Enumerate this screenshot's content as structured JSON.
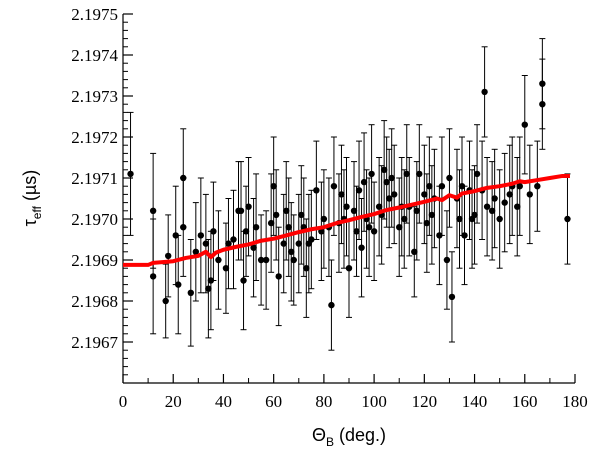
{
  "chart_data": {
    "type": "scatter",
    "xlabel": "Θ",
    "xlabel_sub": "B",
    "xlabel_unit": " (deg.)",
    "ylabel": "τ",
    "ylabel_sub": "eff",
    "ylabel_unit": " (µs)",
    "xlim": [
      0,
      180
    ],
    "ylim": [
      2.1966,
      2.1975
    ],
    "x_ticks": [
      "0",
      "20",
      "40",
      "60",
      "80",
      "100",
      "120",
      "140",
      "160",
      "180"
    ],
    "y_ticks": [
      "2.1967",
      "2.1968",
      "2.1969",
      "2.1970",
      "2.1971",
      "2.1972",
      "2.1973",
      "2.1974",
      "2.1975"
    ],
    "grid": false,
    "colors": {
      "points": "#000000",
      "fit": "#ff0000"
    },
    "series": [
      {
        "style": "points-with-error-bars",
        "x": [
          3,
          12,
          12,
          17,
          18,
          21,
          22,
          24,
          24,
          27,
          29,
          31,
          33,
          34,
          35,
          36,
          38,
          41,
          42,
          44,
          46,
          47,
          48,
          49,
          50,
          52,
          53,
          55,
          57,
          59,
          60,
          61,
          62,
          64,
          65,
          66,
          67,
          68,
          70,
          71,
          72,
          73,
          74,
          75,
          77,
          79,
          80,
          82,
          83,
          84,
          86,
          87,
          88,
          89,
          90,
          92,
          93,
          94,
          95,
          96,
          97,
          98,
          99,
          100,
          102,
          103,
          104,
          105,
          106,
          107,
          108,
          110,
          111,
          112,
          113,
          114,
          116,
          117,
          118,
          120,
          121,
          122,
          123,
          124,
          126,
          127,
          129,
          130,
          131,
          133,
          134,
          135,
          136,
          138,
          139,
          140,
          141,
          143,
          144,
          145,
          147,
          148,
          150,
          152,
          154,
          155,
          157,
          158,
          160,
          162,
          165,
          167,
          167,
          177
        ],
        "y": [
          2.19711,
          2.19686,
          2.19702,
          2.1968,
          2.19691,
          2.19696,
          2.19684,
          2.1971,
          2.19698,
          2.19682,
          2.19692,
          2.19696,
          2.19694,
          2.19683,
          2.19685,
          2.19697,
          2.1969,
          2.19688,
          2.19694,
          2.19695,
          2.19702,
          2.19702,
          2.19685,
          2.19697,
          2.19703,
          2.19693,
          2.19698,
          2.1969,
          2.1969,
          2.19699,
          2.19708,
          2.19701,
          2.19686,
          2.19694,
          2.19702,
          2.19698,
          2.19692,
          2.1969,
          2.19694,
          2.19701,
          2.19698,
          2.19688,
          2.19694,
          2.19695,
          2.19707,
          2.19697,
          2.197,
          2.19698,
          2.19679,
          2.19708,
          2.19699,
          2.19706,
          2.197,
          2.19703,
          2.19688,
          2.19702,
          2.19697,
          2.19707,
          2.19693,
          2.19709,
          2.197,
          2.19698,
          2.19711,
          2.19697,
          2.19703,
          2.19701,
          2.19712,
          2.19709,
          2.19705,
          2.1971,
          2.19706,
          2.19698,
          2.19703,
          2.197,
          2.19711,
          2.19703,
          2.19692,
          2.19702,
          2.19711,
          2.19706,
          2.19699,
          2.19708,
          2.19701,
          2.19705,
          2.19696,
          2.19708,
          2.1969,
          2.1971,
          2.19681,
          2.19705,
          2.197,
          2.19708,
          2.19696,
          2.19707,
          2.197,
          2.19701,
          2.19711,
          2.19707,
          2.19731,
          2.19703,
          2.19702,
          2.19705,
          2.197,
          2.19704,
          2.19706,
          2.19708,
          2.19703,
          2.19708,
          2.19723,
          2.19706,
          2.19708,
          2.19728,
          2.19733,
          2.197
        ],
        "err": [
          0.00015,
          0.00014,
          0.00014,
          9e-05,
          0.0001,
          0.00012,
          0.00012,
          0.00012,
          0.00012,
          0.00013,
          0.00012,
          0.00014,
          0.00012,
          0.00012,
          0.00012,
          0.00012,
          0.00012,
          0.00011,
          0.00011,
          0.00012,
          0.00012,
          0.00012,
          0.00012,
          0.00011,
          0.00012,
          0.00012,
          0.00013,
          0.00011,
          0.00012,
          0.00012,
          0.00012,
          0.00011,
          0.00012,
          0.00012,
          0.00012,
          0.00012,
          0.00012,
          0.00011,
          0.00012,
          0.00012,
          0.00012,
          0.00012,
          0.00012,
          0.00012,
          0.00012,
          0.00012,
          0.00012,
          0.00012,
          0.00011,
          0.00012,
          0.00012,
          0.00012,
          0.00012,
          0.00012,
          0.00012,
          0.00012,
          0.00011,
          0.00012,
          0.00012,
          0.00012,
          0.00012,
          0.00012,
          0.00012,
          0.00012,
          0.00012,
          0.00012,
          0.00012,
          0.00011,
          0.00012,
          0.00012,
          0.00012,
          0.00012,
          0.00012,
          0.00012,
          0.00012,
          0.00012,
          0.00011,
          0.00012,
          0.00012,
          0.00012,
          0.00012,
          0.00012,
          0.00012,
          0.00012,
          0.00012,
          0.00012,
          0.00012,
          0.00012,
          0.00011,
          0.00012,
          0.00012,
          0.00012,
          0.00012,
          0.00012,
          0.00012,
          0.00012,
          0.00012,
          0.00012,
          0.00011,
          0.00012,
          0.00012,
          0.00012,
          0.00012,
          0.00012,
          0.00012,
          0.00012,
          0.00012,
          0.00012,
          0.00012,
          0.00012,
          0.00011,
          0.00011,
          0.00011,
          0.00011
        ]
      },
      {
        "style": "line",
        "x": [
          0,
          10,
          12,
          20,
          25,
          30,
          33,
          35,
          37,
          40,
          45,
          50,
          55,
          60,
          65,
          70,
          75,
          80,
          85,
          90,
          95,
          100,
          105,
          110,
          115,
          120,
          125,
          127,
          130,
          133,
          135,
          140,
          145,
          150,
          155,
          158,
          160,
          165,
          170,
          175,
          178
        ],
        "y": [
          2.196888,
          2.196888,
          2.196893,
          2.196897,
          2.196905,
          2.19691,
          2.19692,
          2.196907,
          2.196918,
          2.196925,
          2.196932,
          2.196938,
          2.196947,
          2.196952,
          2.19696,
          2.196968,
          2.196975,
          2.19698,
          2.19699,
          2.196997,
          2.197005,
          2.197012,
          2.197022,
          2.197028,
          2.197035,
          2.197042,
          2.19705,
          2.197046,
          2.197058,
          2.197052,
          2.197062,
          2.197068,
          2.197076,
          2.19708,
          2.197086,
          2.197092,
          2.19709,
          2.197095,
          2.1971,
          2.197105,
          2.197105
        ]
      }
    ]
  }
}
